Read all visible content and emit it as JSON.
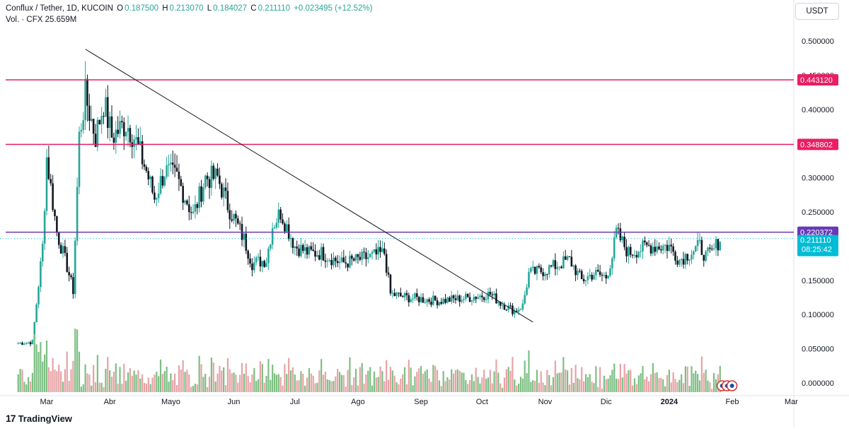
{
  "header": {
    "symbol": "Conflux / Tether, 1D, KUCOIN",
    "o_label": "O",
    "o_value": "0.187500",
    "h_label": "H",
    "h_value": "0.213070",
    "l_label": "L",
    "l_value": "0.184027",
    "c_label": "C",
    "c_value": "0.211110",
    "change": "+0.023495 (+12.52%)",
    "vol_label": "Vol. · CFX",
    "vol_value": "25.659M"
  },
  "currency_button": "USDT",
  "brand": {
    "mark": "17",
    "name": "TradingView"
  },
  "colors": {
    "up": "#26a69a",
    "down": "#131722",
    "resistance": "#e91e63",
    "support": "#673ab7",
    "trend": "#131722",
    "last_price": "#00bcd4",
    "vol_up": "#7cbf82",
    "vol_down": "#e6a3a6"
  },
  "chart_data": {
    "type": "candlestick",
    "title": "Conflux / Tether, 1D, KUCOIN",
    "y_ticks": [
      "0.500000",
      "0.450000",
      "0.400000",
      "0.350000",
      "0.300000",
      "0.250000",
      "0.200000",
      "0.150000",
      "0.100000",
      "0.050000",
      "0.000000"
    ],
    "ylim": [
      0,
      0.5
    ],
    "x_ticks": [
      "Mar",
      "Abr",
      "Mayo",
      "Jun",
      "Jul",
      "Ago",
      "Sep",
      "Oct",
      "Nov",
      "Dic",
      "2024",
      "Feb",
      "Mar"
    ],
    "price_levels": [
      {
        "label": "0.443120",
        "value": 0.44312,
        "kind": "resistance"
      },
      {
        "label": "0.348802",
        "value": 0.348802,
        "kind": "resistance"
      },
      {
        "label": "0.220372",
        "value": 0.220372,
        "kind": "support"
      }
    ],
    "last_price": {
      "value": "0.211110",
      "countdown": "08:25:42"
    },
    "trendline": {
      "from": {
        "date": "Mar 20",
        "price": 0.488
      },
      "to": {
        "date": "Oct 26",
        "price": 0.089
      }
    },
    "keypoints": [
      {
        "date": "Feb 15",
        "close": 0.058
      },
      {
        "date": "Feb 22",
        "close": 0.06
      },
      {
        "date": "Feb 27",
        "close": 0.2
      },
      {
        "date": "Mar 1",
        "close": 0.33
      },
      {
        "date": "Mar 6",
        "close": 0.22
      },
      {
        "date": "Mar 11",
        "close": 0.17
      },
      {
        "date": "Mar 14",
        "close": 0.135
      },
      {
        "date": "Mar 17",
        "close": 0.36
      },
      {
        "date": "Mar 20",
        "close": 0.42
      },
      {
        "date": "Mar 25",
        "close": 0.36
      },
      {
        "date": "Mar 29",
        "close": 0.41
      },
      {
        "date": "Apr 2",
        "close": 0.36
      },
      {
        "date": "Apr 9",
        "close": 0.38
      },
      {
        "date": "Apr 13",
        "close": 0.36
      },
      {
        "date": "Apr 19",
        "close": 0.31
      },
      {
        "date": "Apr 23",
        "close": 0.27
      },
      {
        "date": "Apr 28",
        "close": 0.31
      },
      {
        "date": "May 4",
        "close": 0.3
      },
      {
        "date": "May 12",
        "close": 0.245
      },
      {
        "date": "May 18",
        "close": 0.3
      },
      {
        "date": "May 24",
        "close": 0.3
      },
      {
        "date": "May 29",
        "close": 0.26
      },
      {
        "date": "Jun 6",
        "close": 0.21
      },
      {
        "date": "Jun 10",
        "close": 0.175
      },
      {
        "date": "Jun 17",
        "close": 0.18
      },
      {
        "date": "Jun 20",
        "close": 0.23
      },
      {
        "date": "Jun 24",
        "close": 0.25
      },
      {
        "date": "Jul 1",
        "close": 0.2
      },
      {
        "date": "Jul 8",
        "close": 0.19
      },
      {
        "date": "Jul 14",
        "close": 0.19
      },
      {
        "date": "Jul 24",
        "close": 0.175
      },
      {
        "date": "Aug 5",
        "close": 0.183
      },
      {
        "date": "Aug 14",
        "close": 0.19
      },
      {
        "date": "Aug 17",
        "close": 0.13
      },
      {
        "date": "Aug 25",
        "close": 0.125
      },
      {
        "date": "Sep 10",
        "close": 0.12
      },
      {
        "date": "Sep 25",
        "close": 0.125
      },
      {
        "date": "Oct 5",
        "close": 0.13
      },
      {
        "date": "Oct 10",
        "close": 0.117
      },
      {
        "date": "Oct 17",
        "close": 0.105
      },
      {
        "date": "Oct 21",
        "close": 0.113
      },
      {
        "date": "Oct 24",
        "close": 0.16
      },
      {
        "date": "Nov 1",
        "close": 0.165
      },
      {
        "date": "Nov 13",
        "close": 0.18
      },
      {
        "date": "Nov 19",
        "close": 0.15
      },
      {
        "date": "Nov 25",
        "close": 0.16
      },
      {
        "date": "Dec 1",
        "close": 0.155
      },
      {
        "date": "Dec 4",
        "close": 0.185
      },
      {
        "date": "Dec 6",
        "close": 0.22
      },
      {
        "date": "Dec 12",
        "close": 0.19
      },
      {
        "date": "Dec 22",
        "close": 0.2
      },
      {
        "date": "Jan 1",
        "close": 0.2
      },
      {
        "date": "Jan 6",
        "close": 0.18
      },
      {
        "date": "Jan 16",
        "close": 0.2
      },
      {
        "date": "Jan 19",
        "close": 0.185
      },
      {
        "date": "Jan 22",
        "close": 0.19
      },
      {
        "date": "Jan 26",
        "close": 0.2111
      }
    ]
  }
}
